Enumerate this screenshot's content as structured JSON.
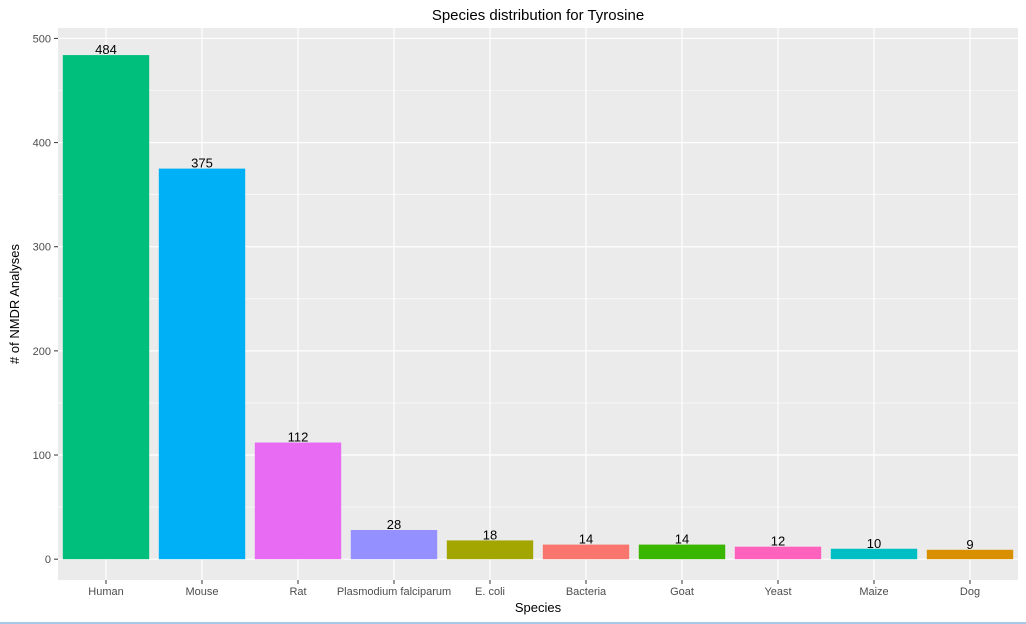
{
  "chart_data": {
    "type": "bar",
    "title": "Species distribution for Tyrosine",
    "xlabel": "Species",
    "ylabel": "# of NMDR Analyses",
    "categories": [
      "Human",
      "Mouse",
      "Rat",
      "Plasmodium falciparum",
      "E. coli",
      "Bacteria",
      "Goat",
      "Yeast",
      "Maize",
      "Dog"
    ],
    "values": [
      484,
      375,
      112,
      28,
      18,
      14,
      14,
      12,
      10,
      9
    ],
    "data_labels": [
      "484",
      "375",
      "112",
      "28",
      "18",
      "14",
      "14",
      "12",
      "10",
      "9"
    ],
    "colors": [
      "#00BF7D",
      "#00B0F6",
      "#E76BF3",
      "#9590FF",
      "#A3A500",
      "#F8766D",
      "#39B600",
      "#FF62BC",
      "#00BFC4",
      "#D89000"
    ],
    "ylim": [
      -20,
      510
    ],
    "yticks": [
      0,
      100,
      200,
      300,
      400,
      500
    ],
    "ytick_labels": [
      "0",
      "100",
      "200",
      "300",
      "400",
      "500"
    ],
    "grid": true,
    "legend": "none",
    "panel_background": "#EBEBEB",
    "grid_color": "#FFFFFF"
  }
}
